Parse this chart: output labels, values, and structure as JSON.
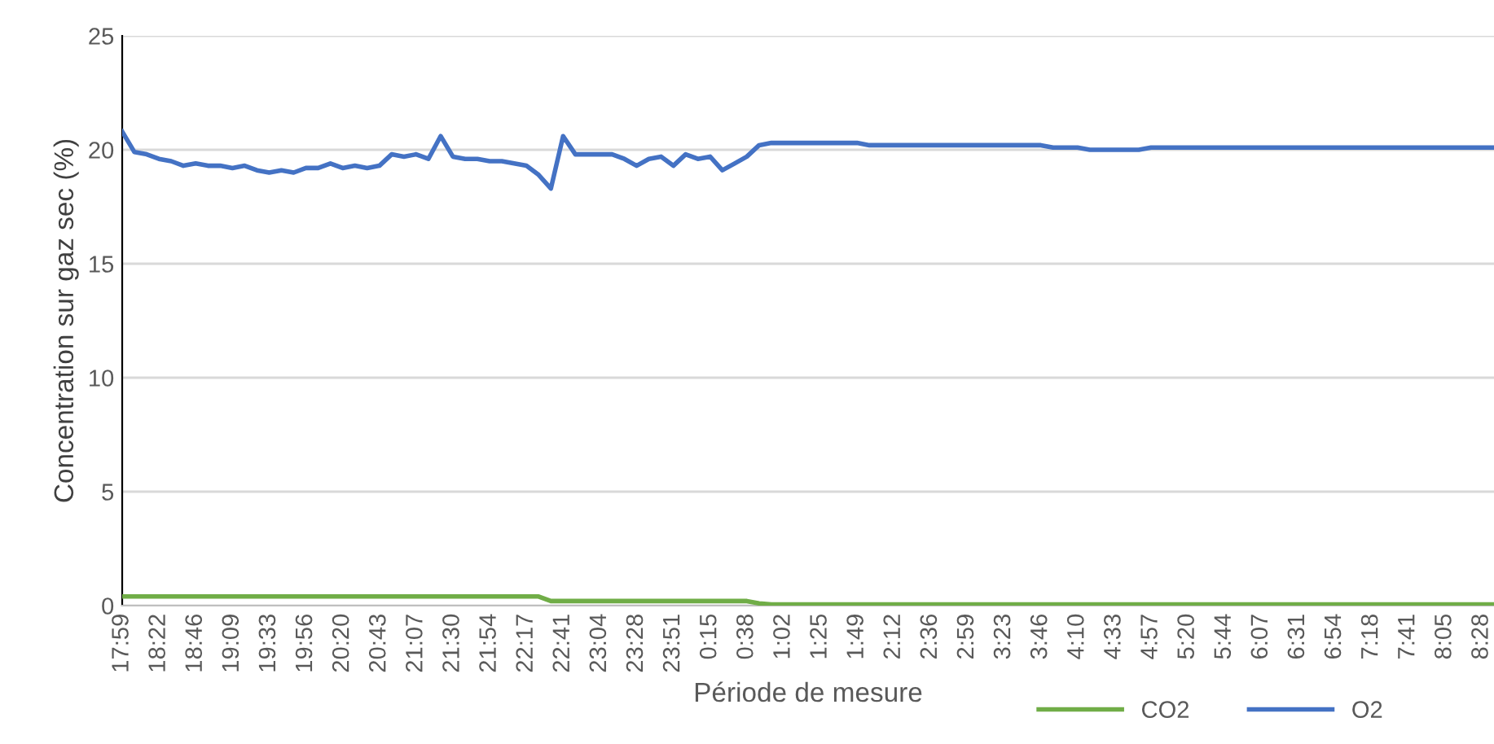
{
  "chart_data": {
    "type": "line",
    "xlabel": "Période de mesure",
    "ylabel": "Concentration sur gaz sec (%)",
    "ylim": [
      0,
      25
    ],
    "yticks": [
      0,
      5,
      10,
      15,
      20,
      25
    ],
    "categories": [
      "17:59",
      null,
      null,
      "18:22",
      null,
      null,
      "18:46",
      null,
      null,
      "19:09",
      null,
      null,
      "19:33",
      null,
      null,
      "19:56",
      null,
      null,
      "20:20",
      null,
      null,
      "20:43",
      null,
      null,
      "21:07",
      null,
      null,
      "21:30",
      null,
      null,
      "21:54",
      null,
      null,
      "22:17",
      null,
      null,
      "22:41",
      null,
      null,
      "23:04",
      null,
      null,
      "23:28",
      null,
      null,
      "23:51",
      null,
      null,
      "0:15",
      null,
      null,
      "0:38",
      null,
      null,
      "1:02",
      null,
      null,
      "1:25",
      null,
      null,
      "1:49",
      null,
      null,
      "2:12",
      null,
      null,
      "2:36",
      null,
      null,
      "2:59",
      null,
      null,
      "3:23",
      null,
      null,
      "3:46",
      null,
      null,
      "4:10",
      null,
      null,
      "4:33",
      null,
      null,
      "4:57",
      null,
      null,
      "5:20",
      null,
      null,
      "5:44",
      null,
      null,
      "6:07",
      null,
      null,
      "6:31",
      null,
      null,
      "6:54",
      null,
      null,
      "7:18",
      null,
      null,
      "7:41",
      null,
      null,
      "8:05",
      null,
      null,
      "8:28",
      null
    ],
    "grid": "y",
    "legend": "bottom right",
    "marker": "none",
    "line_style": "solid",
    "series": [
      {
        "name": "CO2",
        "color": "#70ad47",
        "values": [
          0.4,
          0.4,
          0.4,
          0.4,
          0.4,
          0.4,
          0.4,
          0.4,
          0.4,
          0.4,
          0.4,
          0.4,
          0.4,
          0.4,
          0.4,
          0.4,
          0.4,
          0.4,
          0.4,
          0.4,
          0.4,
          0.4,
          0.4,
          0.4,
          0.4,
          0.4,
          0.4,
          0.4,
          0.4,
          0.4,
          0.4,
          0.4,
          0.4,
          0.4,
          0.4,
          0.2,
          0.2,
          0.2,
          0.2,
          0.2,
          0.2,
          0.2,
          0.2,
          0.2,
          0.2,
          0.2,
          0.2,
          0.2,
          0.2,
          0.2,
          0.2,
          0.2,
          0.1,
          0.05,
          0.05,
          0.05,
          0.05,
          0.05,
          0.05,
          0.05,
          0.05,
          0.05,
          0.05,
          0.05,
          0.05,
          0.05,
          0.05,
          0.05,
          0.05,
          0.05,
          0.05,
          0.05,
          0.05,
          0.05,
          0.05,
          0.05,
          0.05,
          0.05,
          0.05,
          0.05,
          0.05,
          0.05,
          0.05,
          0.05,
          0.05,
          0.05,
          0.05,
          0.05,
          0.05,
          0.05,
          0.05,
          0.05,
          0.05,
          0.05,
          0.05,
          0.05,
          0.05,
          0.05,
          0.05,
          0.05,
          0.05,
          0.05,
          0.05,
          0.05,
          0.05,
          0.05,
          0.05,
          0.05,
          0.05,
          0.05,
          0.05,
          0.05,
          0.05
        ]
      },
      {
        "name": "O2",
        "color": "#4472c4",
        "values": [
          20.8,
          19.9,
          19.8,
          19.6,
          19.5,
          19.3,
          19.4,
          19.3,
          19.3,
          19.2,
          19.3,
          19.1,
          19.0,
          19.1,
          19.0,
          19.2,
          19.2,
          19.4,
          19.2,
          19.3,
          19.2,
          19.3,
          19.8,
          19.7,
          19.8,
          19.6,
          20.6,
          19.7,
          19.6,
          19.6,
          19.5,
          19.5,
          19.4,
          19.3,
          18.9,
          18.3,
          20.6,
          19.8,
          19.8,
          19.8,
          19.8,
          19.6,
          19.3,
          19.6,
          19.7,
          19.3,
          19.8,
          19.6,
          19.7,
          19.1,
          19.4,
          19.7,
          20.2,
          20.3,
          20.3,
          20.3,
          20.3,
          20.3,
          20.3,
          20.3,
          20.3,
          20.2,
          20.2,
          20.2,
          20.2,
          20.2,
          20.2,
          20.2,
          20.2,
          20.2,
          20.2,
          20.2,
          20.2,
          20.2,
          20.2,
          20.2,
          20.1,
          20.1,
          20.1,
          20.0,
          20.0,
          20.0,
          20.0,
          20.0,
          20.1,
          20.1,
          20.1,
          20.1,
          20.1,
          20.1,
          20.1,
          20.1,
          20.1,
          20.1,
          20.1,
          20.1,
          20.1,
          20.1,
          20.1,
          20.1,
          20.1,
          20.1,
          20.1,
          20.1,
          20.1,
          20.1,
          20.1,
          20.1,
          20.1,
          20.1,
          20.1,
          20.1,
          20.1
        ]
      }
    ]
  }
}
